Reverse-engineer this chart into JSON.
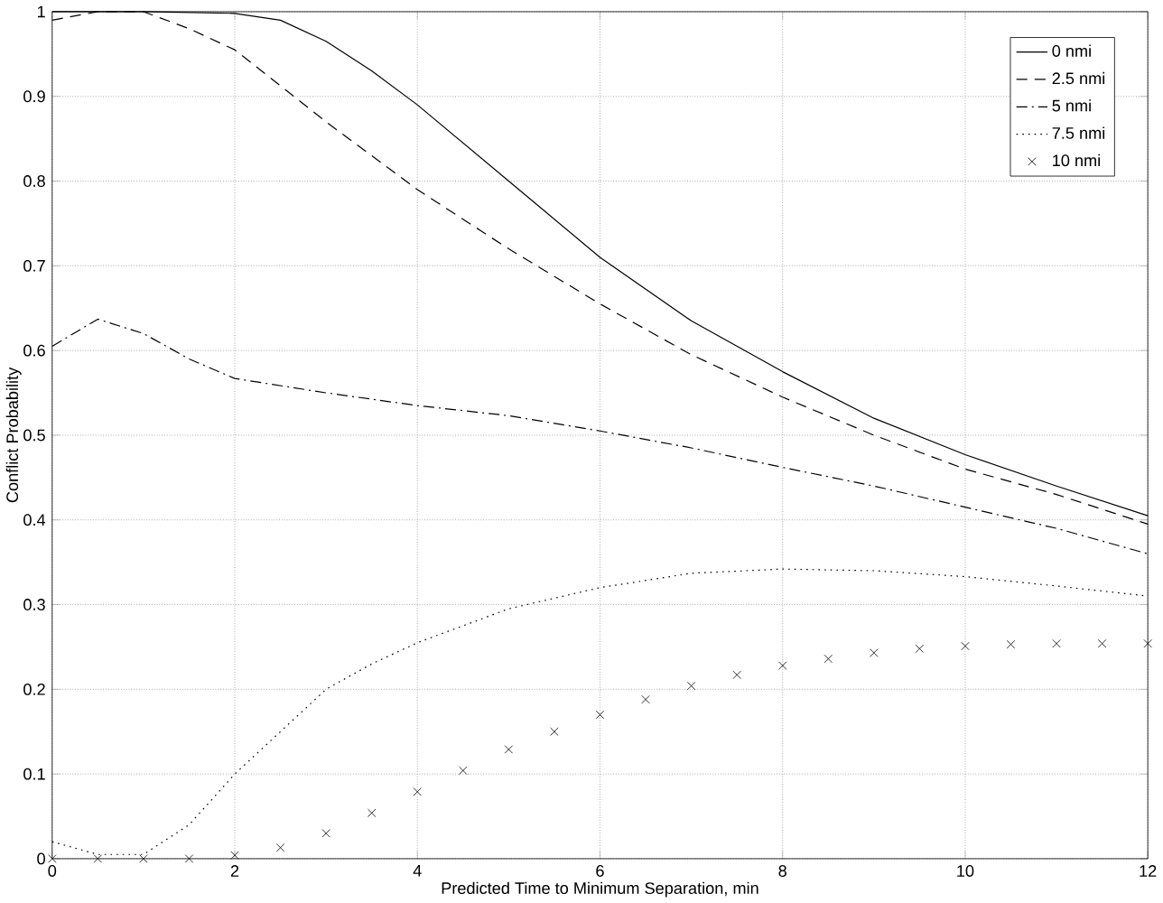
{
  "chart_data": {
    "type": "line",
    "xlabel": "Predicted Time to Minimum Separation, min",
    "ylabel": "Conflict Probability",
    "xlim": [
      0,
      12
    ],
    "xticks": [
      0,
      2,
      4,
      6,
      8,
      10,
      12
    ],
    "ylim": [
      0,
      1
    ],
    "yticks": [
      0,
      0.1,
      0.2,
      0.3,
      0.4,
      0.5,
      0.6,
      0.7,
      0.8,
      0.9,
      1
    ],
    "grid": true,
    "legend": "top right",
    "series": [
      {
        "name": "0 nmi",
        "color": "#000000",
        "line_style": "solid",
        "x": [
          0,
          1,
          2,
          2.5,
          3,
          3.5,
          4,
          5,
          6,
          7,
          8,
          9,
          10,
          11,
          12
        ],
        "values": [
          1.0,
          1.0,
          0.998,
          0.99,
          0.965,
          0.93,
          0.89,
          0.8,
          0.71,
          0.635,
          0.575,
          0.52,
          0.477,
          0.44,
          0.405
        ]
      },
      {
        "name": "2.5 nmi",
        "color": "#000000",
        "line_style": "dashed",
        "x": [
          0,
          0.5,
          1,
          1.5,
          2,
          3,
          4,
          5,
          6,
          7,
          8,
          9,
          10,
          11,
          12
        ],
        "values": [
          0.99,
          1.0,
          1.0,
          0.98,
          0.955,
          0.87,
          0.79,
          0.72,
          0.655,
          0.595,
          0.545,
          0.5,
          0.46,
          0.43,
          0.395
        ]
      },
      {
        "name": "5 nmi",
        "color": "#000000",
        "line_style": "dashdot",
        "x": [
          0,
          0.5,
          1,
          1.5,
          2,
          3,
          4,
          5,
          6,
          7,
          8,
          9,
          10,
          11,
          12
        ],
        "values": [
          0.605,
          0.637,
          0.62,
          0.59,
          0.567,
          0.55,
          0.535,
          0.523,
          0.505,
          0.485,
          0.462,
          0.44,
          0.415,
          0.39,
          0.36
        ]
      },
      {
        "name": "7.5 nmi",
        "color": "#000000",
        "line_style": "dotted",
        "x": [
          0,
          0.5,
          1,
          1.5,
          2,
          2.5,
          3,
          3.5,
          4,
          5,
          6,
          7,
          8,
          9,
          10,
          11,
          12
        ],
        "values": [
          0.02,
          0.005,
          0.005,
          0.04,
          0.1,
          0.15,
          0.2,
          0.23,
          0.255,
          0.295,
          0.32,
          0.337,
          0.342,
          0.34,
          0.333,
          0.322,
          0.31
        ]
      },
      {
        "name": "10 nmi",
        "color": "#000000",
        "type": "scatter",
        "marker": "cross",
        "x": [
          0,
          0.5,
          1,
          1.5,
          2,
          2.5,
          3,
          3.5,
          4,
          4.5,
          5,
          5.5,
          6,
          6.5,
          7,
          7.5,
          8,
          8.5,
          9,
          9.5,
          10,
          10.5,
          11,
          11.5,
          12
        ],
        "values": [
          0,
          0,
          0,
          0,
          0.004,
          0.013,
          0.03,
          0.054,
          0.079,
          0.104,
          0.129,
          0.15,
          0.17,
          0.188,
          0.204,
          0.217,
          0.228,
          0.236,
          0.243,
          0.248,
          0.251,
          0.253,
          0.254,
          0.254,
          0.254
        ]
      }
    ]
  }
}
